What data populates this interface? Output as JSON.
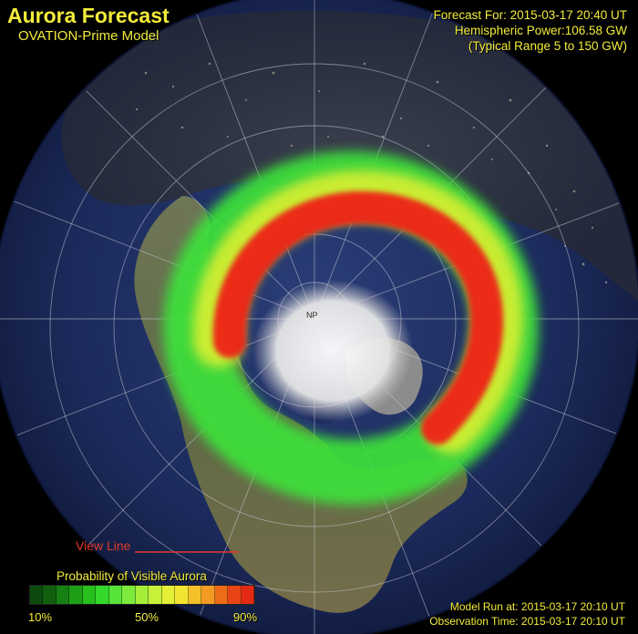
{
  "header": {
    "title": "Aurora Forecast",
    "subtitle": "OVATION-Prime Model"
  },
  "forecast": {
    "forecast_for": "Forecast For: 2015-03-17 20:40 UT",
    "hemispheric_power": "Hemispheric Power:106.58 GW",
    "typical_range": "(Typical Range 5 to 150 GW)"
  },
  "map": {
    "view_line_label": "View Line",
    "pole_label": "NP"
  },
  "legend": {
    "title": "Probability of Visible Aurora",
    "tick_low": "10%",
    "tick_mid": "50%",
    "tick_high": "90%",
    "colors": [
      "#0d4a0d",
      "#12600f",
      "#178012",
      "#1ea016",
      "#27c01c",
      "#33d82a",
      "#56e33a",
      "#7ceb3b",
      "#a5ef3a",
      "#c7f03a",
      "#e4ef36",
      "#f2e531",
      "#f5c12a",
      "#f29a22",
      "#ec6c1a",
      "#e84416",
      "#e52a14"
    ]
  },
  "run": {
    "model_run": "Model Run at: 2015-03-17 20:10 UT",
    "observation_time": "Observation Time: 2015-03-17 20:10 UT"
  },
  "colors": {
    "text_yellow": "#f3ec3a",
    "view_line_red": "#e23a2a",
    "ocean": "#1a2a58",
    "aurora_red": "#ee2418",
    "aurora_green": "#3ee13a"
  }
}
